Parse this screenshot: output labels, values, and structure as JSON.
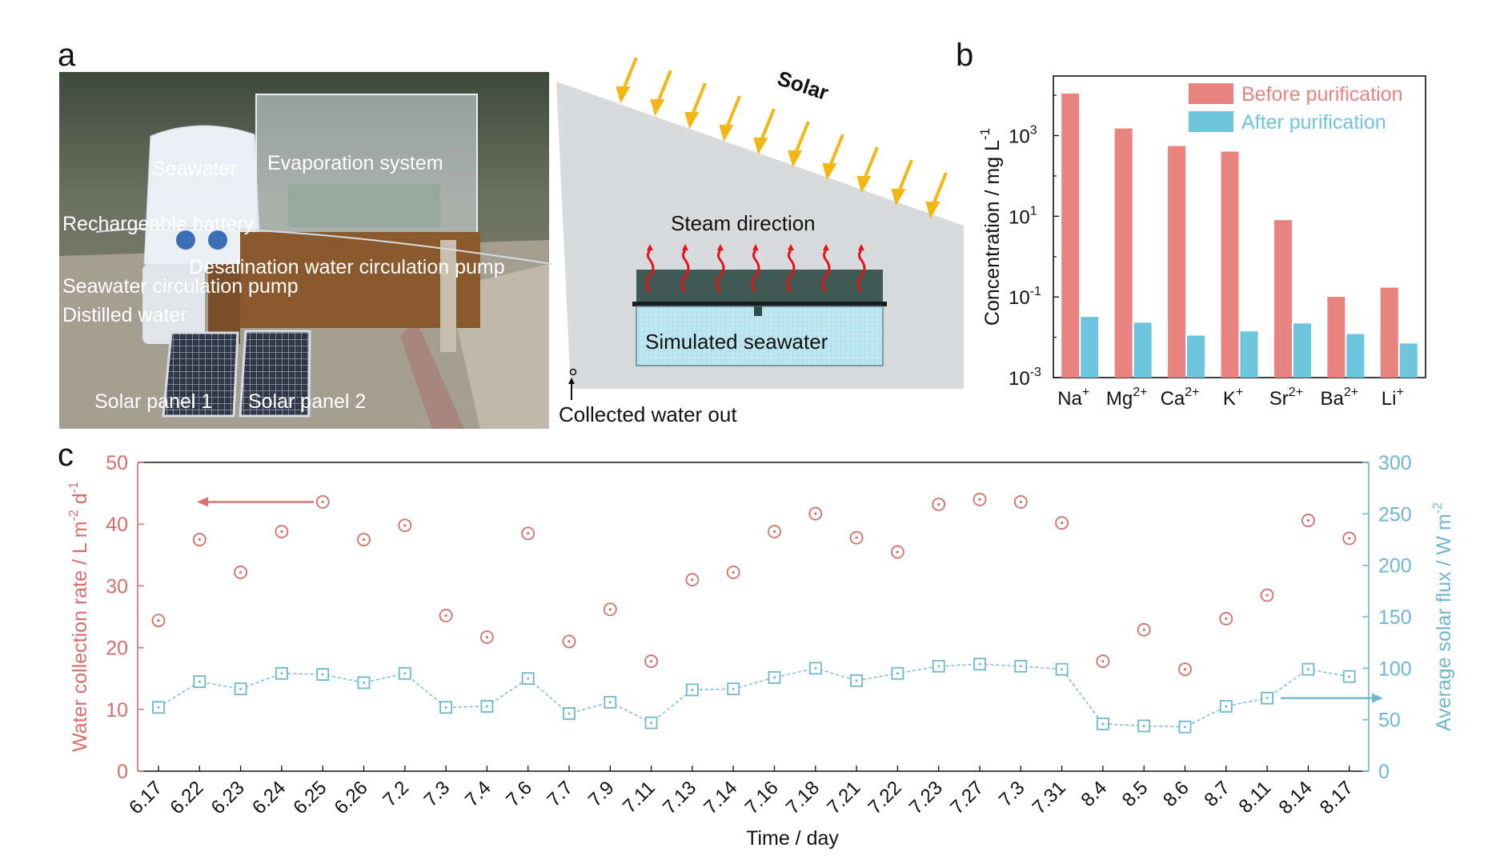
{
  "panels": {
    "a": "a",
    "b": "b",
    "c": "c"
  },
  "photo_labels": {
    "seawater": "Seawater",
    "evaporation": "Evaporation system",
    "battery": "Rechargeable battery",
    "desal_pump": "Desalination water circulation pump",
    "sea_pump": "Seawater circulation pump",
    "distilled": "Distilled water",
    "panel1": "Solar panel 1",
    "panel2": "Solar panel 2"
  },
  "diagram": {
    "solar": "Solar",
    "steam": "Steam direction",
    "seawater": "Simulated seawater",
    "outlet": "Collected water out"
  },
  "colors": {
    "red": "#e8837f",
    "blue": "#6cc5dc",
    "red_axis": "#d46f6b",
    "blue_axis": "#6db8cf"
  },
  "chart_data": [
    {
      "type": "bar",
      "panel": "b",
      "yscale": "log",
      "ylabel": "Concentration / mg L",
      "ylabel_sup": "-1",
      "ylim": [
        0.001,
        30000
      ],
      "yticks": [
        {
          "value": 0.001,
          "base": "10",
          "exp": "-3"
        },
        {
          "value": 0.1,
          "base": "10",
          "exp": "-1"
        },
        {
          "value": 10,
          "base": "10",
          "exp": "1"
        },
        {
          "value": 1000,
          "base": "10",
          "exp": "3"
        }
      ],
      "categories": [
        {
          "base": "Na",
          "sup": "+"
        },
        {
          "base": "Mg",
          "sup": "2+"
        },
        {
          "base": "Ca",
          "sup": "2+"
        },
        {
          "base": "K",
          "sup": "+"
        },
        {
          "base": "Sr",
          "sup": "2+"
        },
        {
          "base": "Ba",
          "sup": "2+"
        },
        {
          "base": "Li",
          "sup": "+"
        }
      ],
      "series": [
        {
          "name": "Before purification",
          "color": "#e8837f",
          "values": [
            11000,
            1500,
            550,
            400,
            8,
            0.1,
            0.17
          ]
        },
        {
          "name": "After purification",
          "color": "#6cc5dc",
          "values": [
            0.032,
            0.023,
            0.011,
            0.014,
            0.022,
            0.012,
            0.007
          ]
        }
      ],
      "legend": "top-right"
    },
    {
      "type": "scatter",
      "panel": "c",
      "xlabel": "Time / day",
      "x": [
        "6.17",
        "6.22",
        "6.23",
        "6.24",
        "6.25",
        "6.26",
        "7.2",
        "7.3",
        "7.4",
        "7.6",
        "7.7",
        "7.9",
        "7.11",
        "7.13",
        "7.14",
        "7.16",
        "7.18",
        "7.21",
        "7.22",
        "7.23",
        "7.27",
        "7.3",
        "7.31",
        "8.4",
        "8.5",
        "8.6",
        "8.7",
        "8.11",
        "8.14",
        "8.17"
      ],
      "left_axis": {
        "label": "Water collection rate / L m",
        "label_sup1": "-2",
        "label_mid": " d",
        "label_sup2": "-1",
        "ylim": [
          0,
          50
        ],
        "ticks": [
          0,
          10,
          20,
          30,
          40,
          50
        ],
        "color": "#d46f6b"
      },
      "right_axis": {
        "label": "Average solar flux / W m",
        "label_sup": "-2",
        "ylim": [
          0,
          300
        ],
        "ticks": [
          0,
          50,
          100,
          150,
          200,
          250,
          300
        ],
        "color": "#6db8cf"
      },
      "series": [
        {
          "axis": "left",
          "marker": "circle-dot",
          "color": "#d46f6b",
          "values": [
            24.4,
            37.5,
            32.2,
            38.8,
            43.6,
            37.5,
            39.8,
            25.2,
            21.7,
            38.5,
            21.0,
            26.2,
            17.8,
            31.0,
            32.2,
            38.8,
            41.7,
            37.8,
            35.5,
            43.2,
            44.0,
            43.6,
            40.2,
            17.8,
            22.9,
            16.5,
            24.7,
            28.5,
            40.6,
            37.7
          ]
        },
        {
          "axis": "right",
          "marker": "square-dot",
          "line": "dashed",
          "color": "#6db8cf",
          "values": [
            62,
            87,
            80,
            95,
            94,
            86,
            95,
            62,
            63,
            90,
            56,
            67,
            47,
            79,
            80,
            91,
            100,
            88,
            95,
            102,
            104,
            102,
            99,
            46,
            44,
            43,
            63,
            71,
            99,
            92
          ]
        }
      ]
    }
  ]
}
